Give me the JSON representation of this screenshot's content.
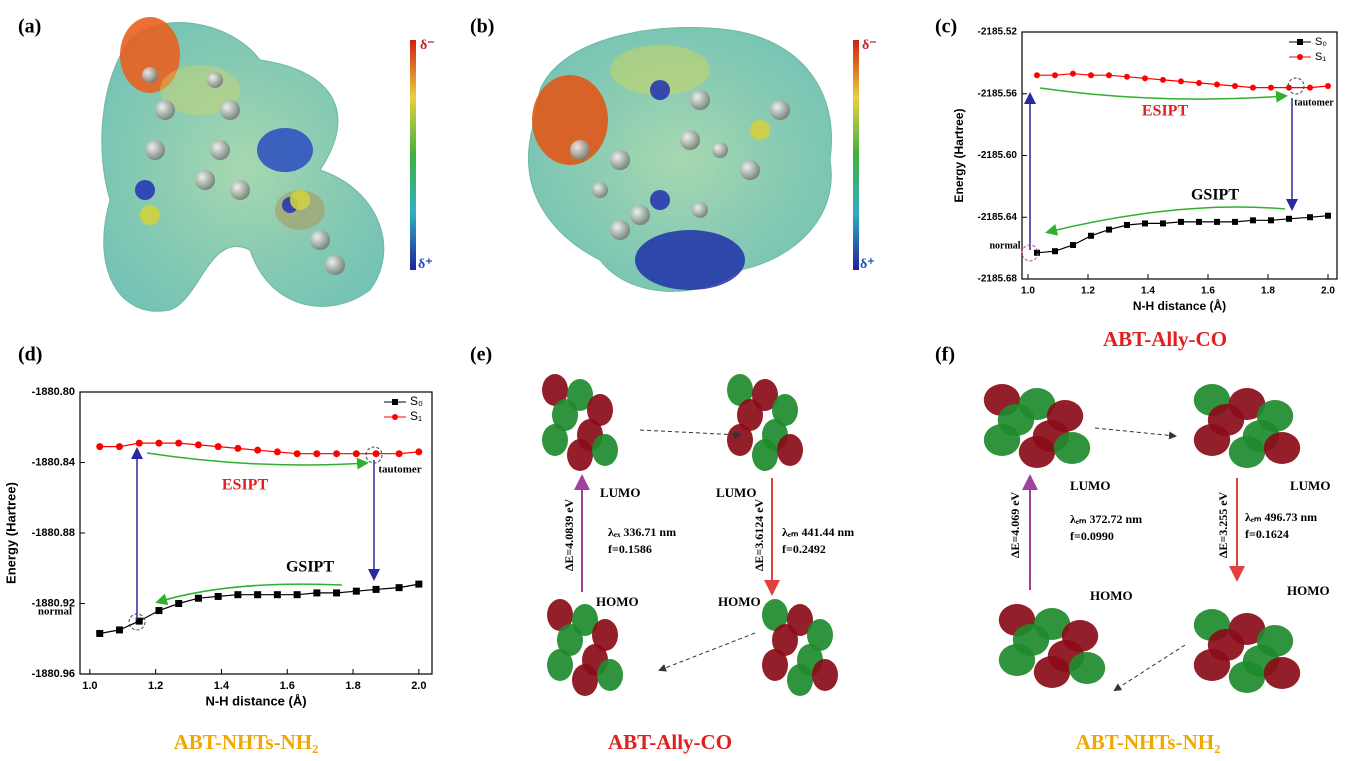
{
  "chart_data": [
    {
      "type": "line",
      "xlabel": "N-H distance (Å)",
      "ylabel": "Energy (Hartree)",
      "x": [
        1.03,
        1.09,
        1.15,
        1.21,
        1.27,
        1.33,
        1.39,
        1.45,
        1.51,
        1.57,
        1.63,
        1.69,
        1.75,
        1.81,
        1.87,
        1.94,
        2.0
      ],
      "series": [
        {
          "name": "S₀",
          "color": "#000000",
          "marker": "square",
          "values": [
            -2185.663,
            -2185.662,
            -2185.658,
            -2185.652,
            -2185.648,
            -2185.645,
            -2185.644,
            -2185.644,
            -2185.643,
            -2185.643,
            -2185.643,
            -2185.643,
            -2185.642,
            -2185.642,
            -2185.641,
            -2185.64,
            -2185.639
          ]
        },
        {
          "name": "S₁",
          "color": "#ff0000",
          "marker": "circle",
          "values": [
            -2185.548,
            -2185.548,
            -2185.547,
            -2185.548,
            -2185.548,
            -2185.549,
            -2185.55,
            -2185.551,
            -2185.552,
            -2185.553,
            -2185.554,
            -2185.555,
            -2185.556,
            -2185.556,
            -2185.556,
            -2185.556,
            -2185.555
          ]
        }
      ],
      "xlim": [
        0.98,
        2.03
      ],
      "xticks": [
        {
          "value": 1.0,
          "label": "1.0"
        },
        1.2,
        1.4,
        1.6,
        1.8,
        {
          "value": 2.0,
          "label": "2.0"
        }
      ],
      "ylim": [
        -2185.68,
        -2185.52
      ],
      "yticks": [
        -2185.52,
        -2185.56,
        {
          "value": -2185.6,
          "label": "-2185.60"
        },
        -2185.64,
        -2185.68
      ],
      "grid": false,
      "legend": "upper right",
      "annotations": [
        "ESIPT",
        "GSIPT",
        "normal",
        "tautomer"
      ]
    },
    {
      "type": "line",
      "xlabel": "N-H distance (Å)",
      "ylabel": "Energy (Hartree)",
      "x": [
        1.03,
        1.09,
        1.15,
        1.21,
        1.27,
        1.33,
        1.39,
        1.45,
        1.51,
        1.57,
        1.63,
        1.69,
        1.75,
        1.81,
        1.87,
        1.94,
        2.0
      ],
      "series": [
        {
          "name": "S₀",
          "color": "#000000",
          "marker": "square",
          "values": [
            -1880.937,
            -1880.935,
            -1880.93,
            -1880.924,
            -1880.92,
            -1880.917,
            -1880.916,
            -1880.915,
            -1880.915,
            -1880.915,
            -1880.915,
            -1880.914,
            -1880.914,
            -1880.913,
            -1880.912,
            -1880.911,
            -1880.909
          ]
        },
        {
          "name": "S₁",
          "color": "#ff0000",
          "marker": "circle",
          "values": [
            -1880.831,
            -1880.831,
            -1880.829,
            -1880.829,
            -1880.829,
            -1880.83,
            -1880.831,
            -1880.832,
            -1880.833,
            -1880.834,
            -1880.835,
            -1880.835,
            -1880.835,
            -1880.835,
            -1880.835,
            -1880.835,
            -1880.834
          ]
        }
      ],
      "xlim": [
        0.97,
        2.04
      ],
      "xticks": [
        {
          "value": 1.0,
          "label": "1.0"
        },
        1.2,
        1.4,
        1.6,
        1.8,
        {
          "value": 2.0,
          "label": "2.0"
        }
      ],
      "ylim": [
        -1880.96,
        -1880.8
      ],
      "yticks": [
        {
          "value": -1880.8,
          "label": "-1880.80"
        },
        -1880.84,
        -1880.88,
        -1880.92,
        -1880.96
      ],
      "grid": false,
      "legend": "upper right",
      "annotations": [
        "ESIPT",
        "GSIPT",
        "normal",
        "tautomer"
      ]
    }
  ],
  "panel_labels": [
    "(a)",
    "(b)",
    "(c)",
    "(d)",
    "(e)",
    "(f)"
  ],
  "colorbars": [
    {
      "top": "δ⁻",
      "bottom": "δ⁺"
    },
    {
      "top": "δ⁻",
      "bottom": "δ⁺"
    }
  ],
  "panel_e": {
    "orbitals": [
      "LUMO",
      "LUMO",
      "HOMO",
      "HOMO"
    ],
    "transitions": [
      {
        "energy": "ΔE=4.0839 eV",
        "wavelength": "λₑₓ 336.71 nm",
        "oscillator": "f=0.1586"
      },
      {
        "energy": "ΔE=3.6124 eV",
        "wavelength": "λₑₘ 441.44 nm",
        "oscillator": "f=0.2492"
      }
    ]
  },
  "panel_f": {
    "orbitals": [
      "LUMO",
      "LUMO",
      "HOMO",
      "HOMO"
    ],
    "transitions": [
      {
        "energy": "ΔE=4.069 eV",
        "wavelength": "λₑₘ 372.72 nm",
        "oscillator": "f=0.0990"
      },
      {
        "energy": "ΔE=3.255 eV",
        "wavelength": "λₑₘ 496.73 nm",
        "oscillator": "f=0.1624"
      }
    ]
  },
  "captions": [
    "ABT-NHTs-NH₂",
    "ABT-Ally-CO",
    "ABT-NHTs-NH₂",
    "ABT-Ally-CO"
  ]
}
